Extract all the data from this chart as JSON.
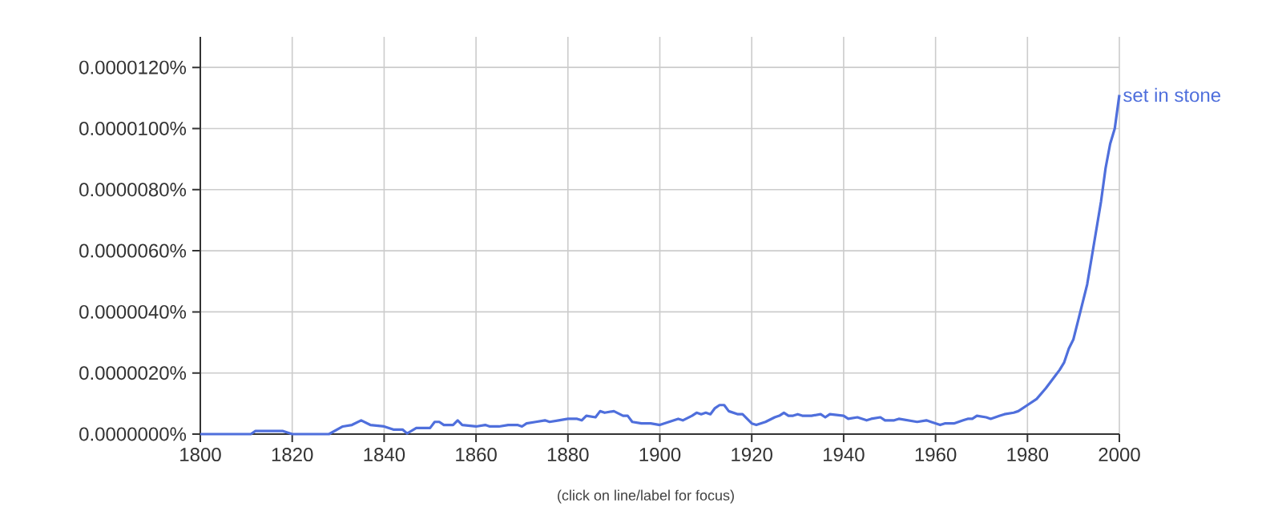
{
  "chart_data": {
    "type": "line",
    "xlim": [
      1800,
      2000
    ],
    "xticks": [
      1800,
      1820,
      1840,
      1860,
      1880,
      1900,
      1920,
      1940,
      1960,
      1980,
      2000
    ],
    "ylim": [
      0,
      1.3e-05
    ],
    "yticks": [
      {
        "value": 0,
        "label": "0.0000000%"
      },
      {
        "value": 2e-06,
        "label": "0.0000020%"
      },
      {
        "value": 4e-06,
        "label": "0.0000040%"
      },
      {
        "value": 6e-06,
        "label": "0.0000060%"
      },
      {
        "value": 8e-06,
        "label": "0.0000080%"
      },
      {
        "value": 1e-05,
        "label": "0.0000100%"
      },
      {
        "value": 1.2e-05,
        "label": "0.0000120%"
      }
    ],
    "grid": true,
    "annotations": [
      "(click on line/label for focus)"
    ],
    "series": [
      {
        "name": "set in stone",
        "color": "#4f6fdc",
        "x": [
          1800,
          1811,
          1812,
          1818,
          1820,
          1828,
          1831,
          1833,
          1835,
          1837,
          1840,
          1842,
          1844,
          1845,
          1847,
          1849,
          1850,
          1851,
          1852,
          1853,
          1855,
          1856,
          1857,
          1860,
          1862,
          1863,
          1865,
          1867,
          1869,
          1870,
          1871,
          1873,
          1875,
          1876,
          1878,
          1880,
          1882,
          1883,
          1884,
          1886,
          1887,
          1888,
          1890,
          1892,
          1893,
          1894,
          1896,
          1898,
          1900,
          1902,
          1904,
          1905,
          1907,
          1908,
          1909,
          1910,
          1911,
          1912,
          1913,
          1914,
          1915,
          1917,
          1918,
          1920,
          1921,
          1923,
          1925,
          1926,
          1927,
          1928,
          1929,
          1930,
          1931,
          1933,
          1935,
          1936,
          1937,
          1940,
          1941,
          1943,
          1945,
          1946,
          1948,
          1949,
          1951,
          1952,
          1954,
          1956,
          1958,
          1959,
          1961,
          1962,
          1964,
          1966,
          1967,
          1968,
          1969,
          1971,
          1972,
          1974,
          1975,
          1977,
          1978,
          1980,
          1982,
          1984,
          1986,
          1987,
          1988,
          1989,
          1990,
          1991,
          1992,
          1993,
          1994,
          1995,
          1996,
          1997,
          1998,
          1999,
          2000
        ],
        "values": [
          0,
          0,
          1e-07,
          1e-07,
          0,
          0,
          2.5e-07,
          3e-07,
          4.5e-07,
          3e-07,
          2.5e-07,
          1.5e-07,
          1.5e-07,
          2e-08,
          2e-07,
          2e-07,
          2e-07,
          4e-07,
          4e-07,
          3e-07,
          3e-07,
          4.5e-07,
          3e-07,
          2.5e-07,
          3e-07,
          2.5e-07,
          2.5e-07,
          3e-07,
          3e-07,
          2.5e-07,
          3.5e-07,
          4e-07,
          4.5e-07,
          4e-07,
          4.5e-07,
          5e-07,
          5e-07,
          4.5e-07,
          6e-07,
          5.5e-07,
          7.5e-07,
          7e-07,
          7.5e-07,
          6e-07,
          6e-07,
          4e-07,
          3.5e-07,
          3.5e-07,
          3e-07,
          4e-07,
          5e-07,
          4.5e-07,
          6e-07,
          7e-07,
          6.5e-07,
          7e-07,
          6.5e-07,
          8.5e-07,
          9.5e-07,
          9.5e-07,
          7.5e-07,
          6.5e-07,
          6.5e-07,
          3.5e-07,
          3e-07,
          4e-07,
          5.5e-07,
          6e-07,
          7e-07,
          6e-07,
          6e-07,
          6.5e-07,
          6e-07,
          6e-07,
          6.5e-07,
          5.5e-07,
          6.5e-07,
          6e-07,
          5e-07,
          5.5e-07,
          4.5e-07,
          5e-07,
          5.5e-07,
          4.5e-07,
          4.5e-07,
          5e-07,
          4.5e-07,
          4e-07,
          4.5e-07,
          4e-07,
          3e-07,
          3.5e-07,
          3.5e-07,
          4.5e-07,
          5e-07,
          5e-07,
          6e-07,
          5.5e-07,
          5e-07,
          6e-07,
          6.5e-07,
          7e-07,
          7.5e-07,
          9.5e-07,
          1.15e-06,
          1.5e-06,
          1.9e-06,
          2.1e-06,
          2.35e-06,
          2.8e-06,
          3.1e-06,
          3.7e-06,
          4.3e-06,
          4.9e-06,
          5.8e-06,
          6.7e-06,
          7.6e-06,
          8.7e-06,
          9.5e-06,
          1e-05,
          1.11e-05
        ]
      }
    ]
  }
}
